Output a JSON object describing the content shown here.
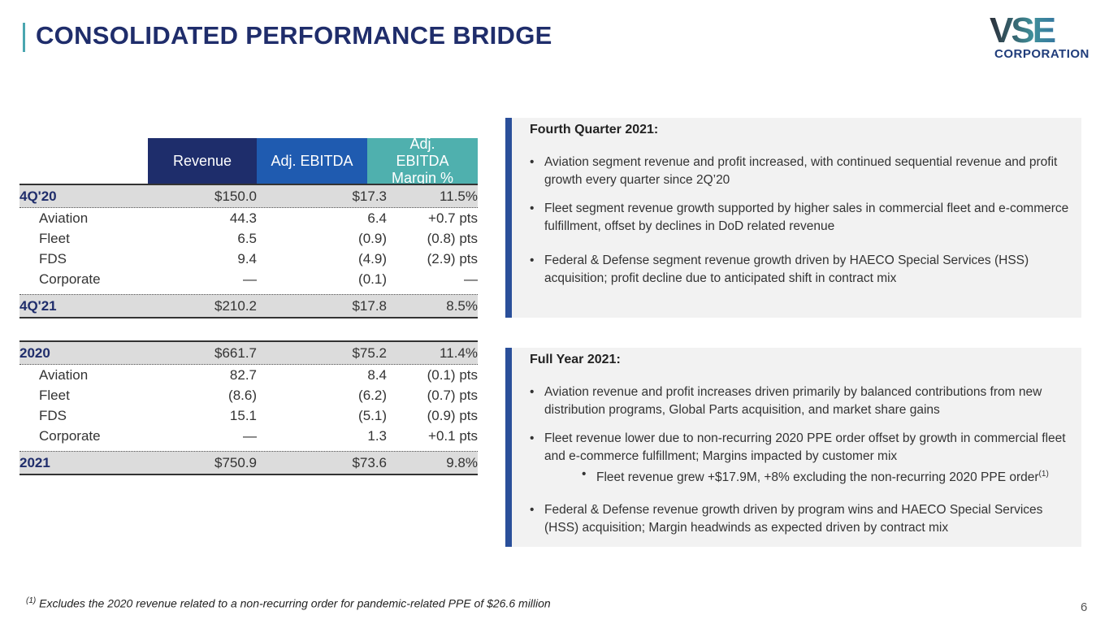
{
  "title": "CONSOLIDATED PERFORMANCE BRIDGE",
  "logo": {
    "main": "VSE",
    "sub": "CORPORATION"
  },
  "table": {
    "headers": [
      "Revenue",
      "Adj. EBITDA",
      "Adj. EBITDA Margin %"
    ],
    "quarter": [
      {
        "label": "4Q'20",
        "rev": "$150.0",
        "ebitda": "$17.3",
        "margin": "11.5%"
      },
      {
        "label": "Aviation",
        "rev": "44.3",
        "ebitda": "6.4",
        "margin": "+0.7 pts"
      },
      {
        "label": "Fleet",
        "rev": "6.5",
        "ebitda": "(0.9)",
        "margin": "(0.8) pts"
      },
      {
        "label": "FDS",
        "rev": "9.4",
        "ebitda": "(4.9)",
        "margin": "(2.9) pts"
      },
      {
        "label": "Corporate",
        "rev": "—",
        "ebitda": "(0.1)",
        "margin": "—"
      },
      {
        "label": "4Q'21",
        "rev": "$210.2",
        "ebitda": "$17.8",
        "margin": "8.5%"
      }
    ],
    "year": [
      {
        "label": "2020",
        "rev": "$661.7",
        "ebitda": "$75.2",
        "margin": "11.4%"
      },
      {
        "label": "Aviation",
        "rev": "82.7",
        "ebitda": "8.4",
        "margin": "(0.1) pts"
      },
      {
        "label": "Fleet",
        "rev": "(8.6)",
        "ebitda": "(6.2)",
        "margin": "(0.7) pts"
      },
      {
        "label": "FDS",
        "rev": "15.1",
        "ebitda": "(5.1)",
        "margin": "(0.9) pts"
      },
      {
        "label": "Corporate",
        "rev": "—",
        "ebitda": "1.3",
        "margin": "+0.1 pts"
      },
      {
        "label": "2021",
        "rev": "$750.9",
        "ebitda": "$73.6",
        "margin": "9.8%"
      }
    ]
  },
  "q4": {
    "heading": "Fourth Quarter 2021:",
    "bullets": [
      "Aviation segment revenue and profit increased, with continued sequential revenue and profit growth every quarter since 2Q’20",
      "Fleet segment revenue growth supported by higher sales in commercial fleet and e-commerce fulfillment, offset by declines in DoD related revenue",
      "Federal & Defense segment revenue growth driven by HAECO Special Services (HSS) acquisition; profit decline due to anticipated shift in contract mix"
    ]
  },
  "fy": {
    "heading": "Full Year 2021:",
    "bullets": [
      "Aviation revenue and profit increases driven primarily by balanced contributions from new distribution programs, Global Parts acquisition, and market share gains",
      "Fleet revenue lower due to non-recurring 2020 PPE order offset by growth in commercial fleet and e-commerce fulfillment; Margins impacted by customer mix"
    ],
    "sub": "Fleet revenue grew +$17.9M, +8% excluding the non-recurring 2020 PPE order",
    "sub_sup": "(1)",
    "last": "Federal & Defense revenue growth driven by program wins and HAECO Special Services (HSS) acquisition; Margin headwinds as expected driven by contract mix"
  },
  "footnote": {
    "sup": "(1)",
    "text": "Excludes the 2020 revenue related to a non-recurring order for pandemic-related PPE of $26.6 million"
  },
  "page": "6"
}
